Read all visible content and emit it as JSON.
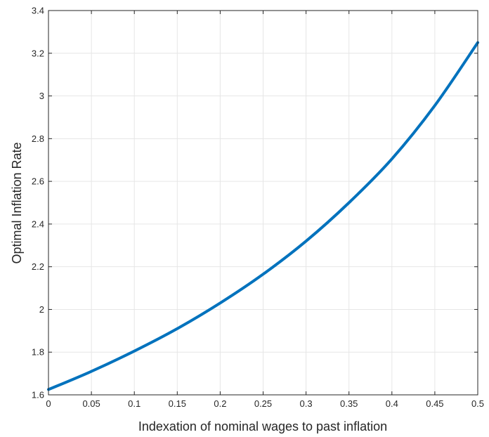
{
  "chart_data": {
    "type": "line",
    "title": "",
    "xlabel": "Indexation of nominal wages to past inflation",
    "ylabel": "Optimal Inflation Rate",
    "xlim": [
      0,
      0.5
    ],
    "ylim": [
      1.6,
      3.4
    ],
    "xticks": [
      "0",
      "0.05",
      "0.1",
      "0.15",
      "0.2",
      "0.25",
      "0.3",
      "0.35",
      "0.4",
      "0.45",
      "0.5"
    ],
    "yticks": [
      "1.6",
      "1.8",
      "2",
      "2.2",
      "2.4",
      "2.6",
      "2.8",
      "3",
      "3.2",
      "3.4"
    ],
    "grid": true,
    "box": true,
    "series": [
      {
        "color": "#0072BD",
        "x": [
          0,
          0.05,
          0.1,
          0.15,
          0.2,
          0.25,
          0.3,
          0.35,
          0.4,
          0.45,
          0.5
        ],
        "y": [
          1.625,
          1.71,
          1.805,
          1.91,
          2.03,
          2.165,
          2.32,
          2.5,
          2.705,
          2.955,
          3.25
        ]
      }
    ]
  }
}
